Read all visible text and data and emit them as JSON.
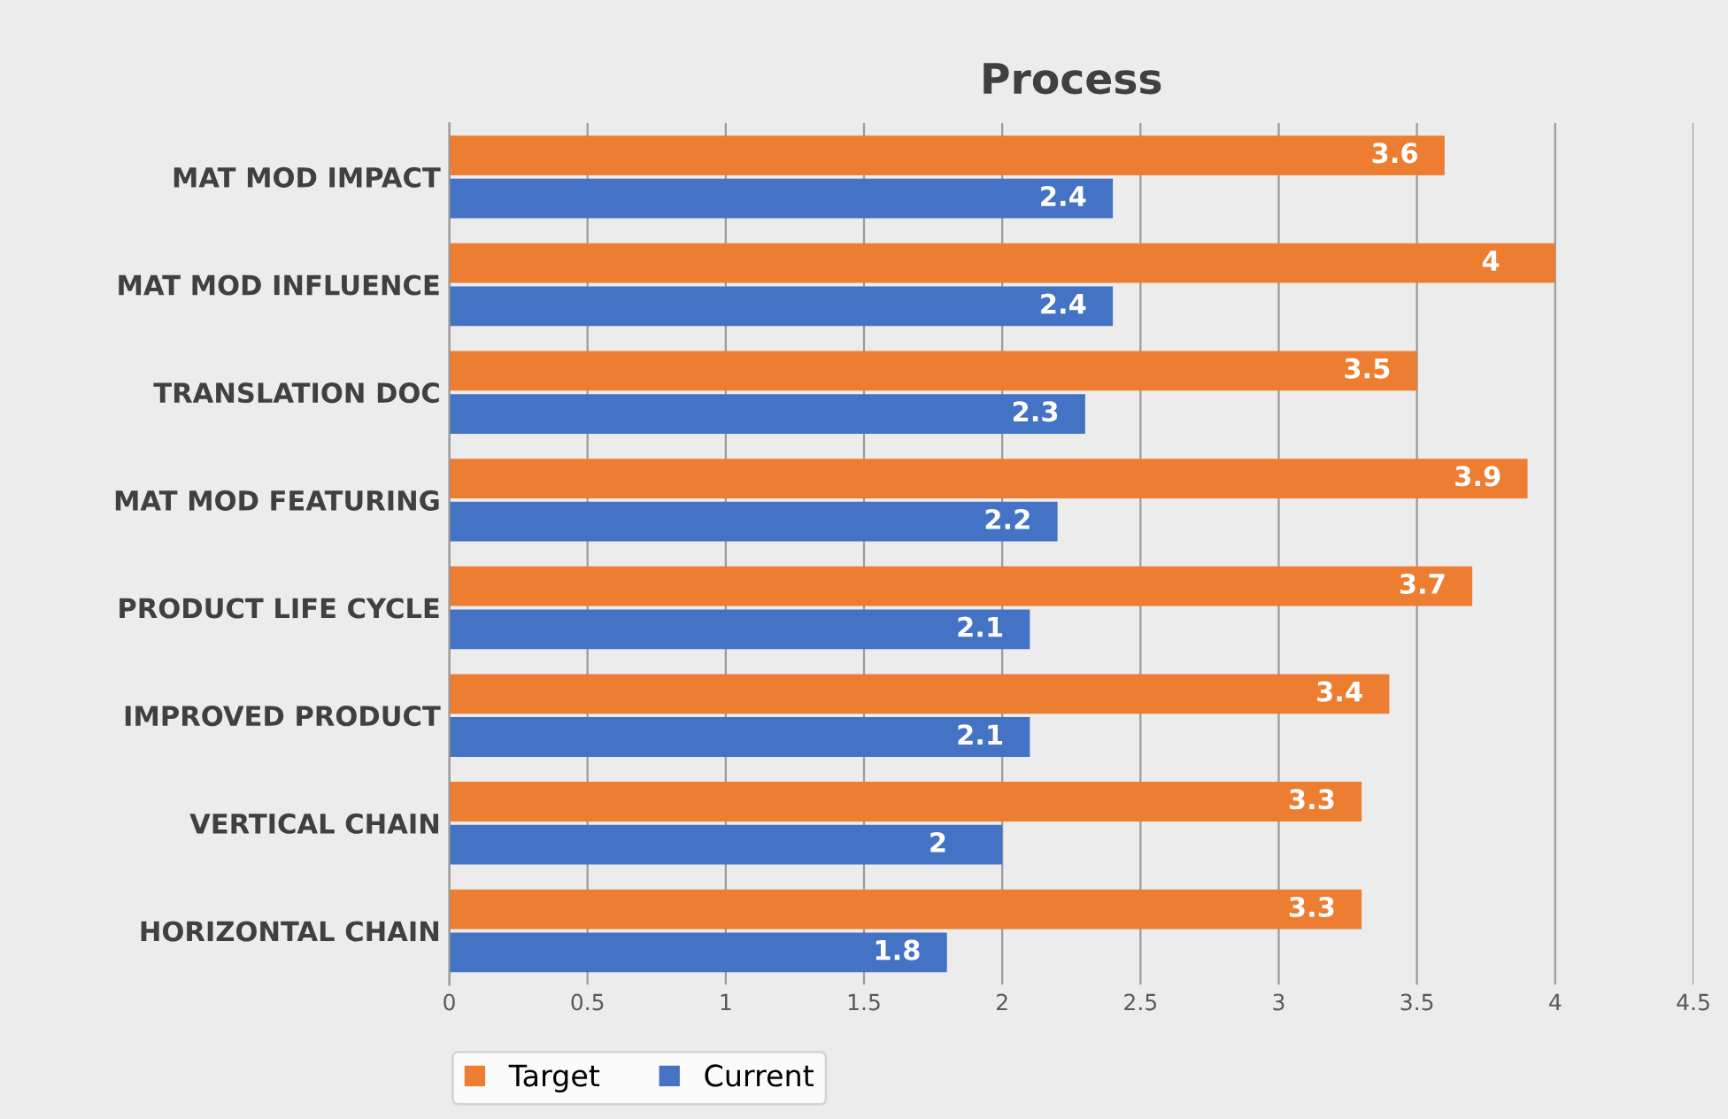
{
  "chart_data": {
    "type": "bar",
    "orientation": "horizontal",
    "title": "Process",
    "categories": [
      "MAT MOD IMPACT",
      "MAT MOD INFLUENCE",
      "TRANSLATION DOC",
      "MAT MOD FEATURING",
      "PRODUCT LIFE CYCLE",
      "IMPROVED PRODUCT",
      "VERTICAL CHAIN",
      "HORIZONTAL CHAIN"
    ],
    "series": [
      {
        "name": "Target",
        "color": "#ed7d31",
        "values": [
          3.6,
          4,
          3.5,
          3.9,
          3.7,
          3.4,
          3.3,
          3.3
        ]
      },
      {
        "name": "Current",
        "color": "#4472c4",
        "values": [
          2.4,
          2.4,
          2.3,
          2.2,
          2.1,
          2.1,
          2,
          1.8
        ]
      }
    ],
    "xlim": [
      0,
      4.5
    ],
    "xticks": [
      0,
      0.5,
      1,
      1.5,
      2,
      2.5,
      3,
      3.5,
      4,
      4.5
    ],
    "grid": "x",
    "legend": "bottom",
    "data_labels": true
  }
}
